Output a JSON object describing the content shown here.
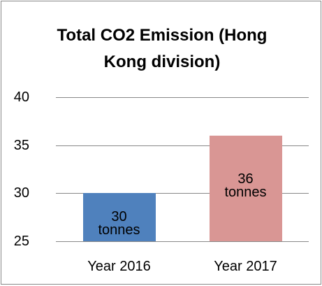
{
  "chart_data": {
    "type": "bar",
    "title": "Total CO2 Emission (Hong Kong division)",
    "categories": [
      "Year 2016",
      "Year 2017"
    ],
    "series": [
      {
        "name": "Total CO2 Emission",
        "colors": [
          "#4f81bd",
          "#d99694"
        ],
        "values": [
          30,
          36
        ],
        "value_labels": [
          "30 tonnes",
          "36 tonnes"
        ]
      }
    ],
    "ylim": [
      25,
      40
    ],
    "yticks": [
      25,
      30,
      35,
      40
    ],
    "grid": true
  }
}
